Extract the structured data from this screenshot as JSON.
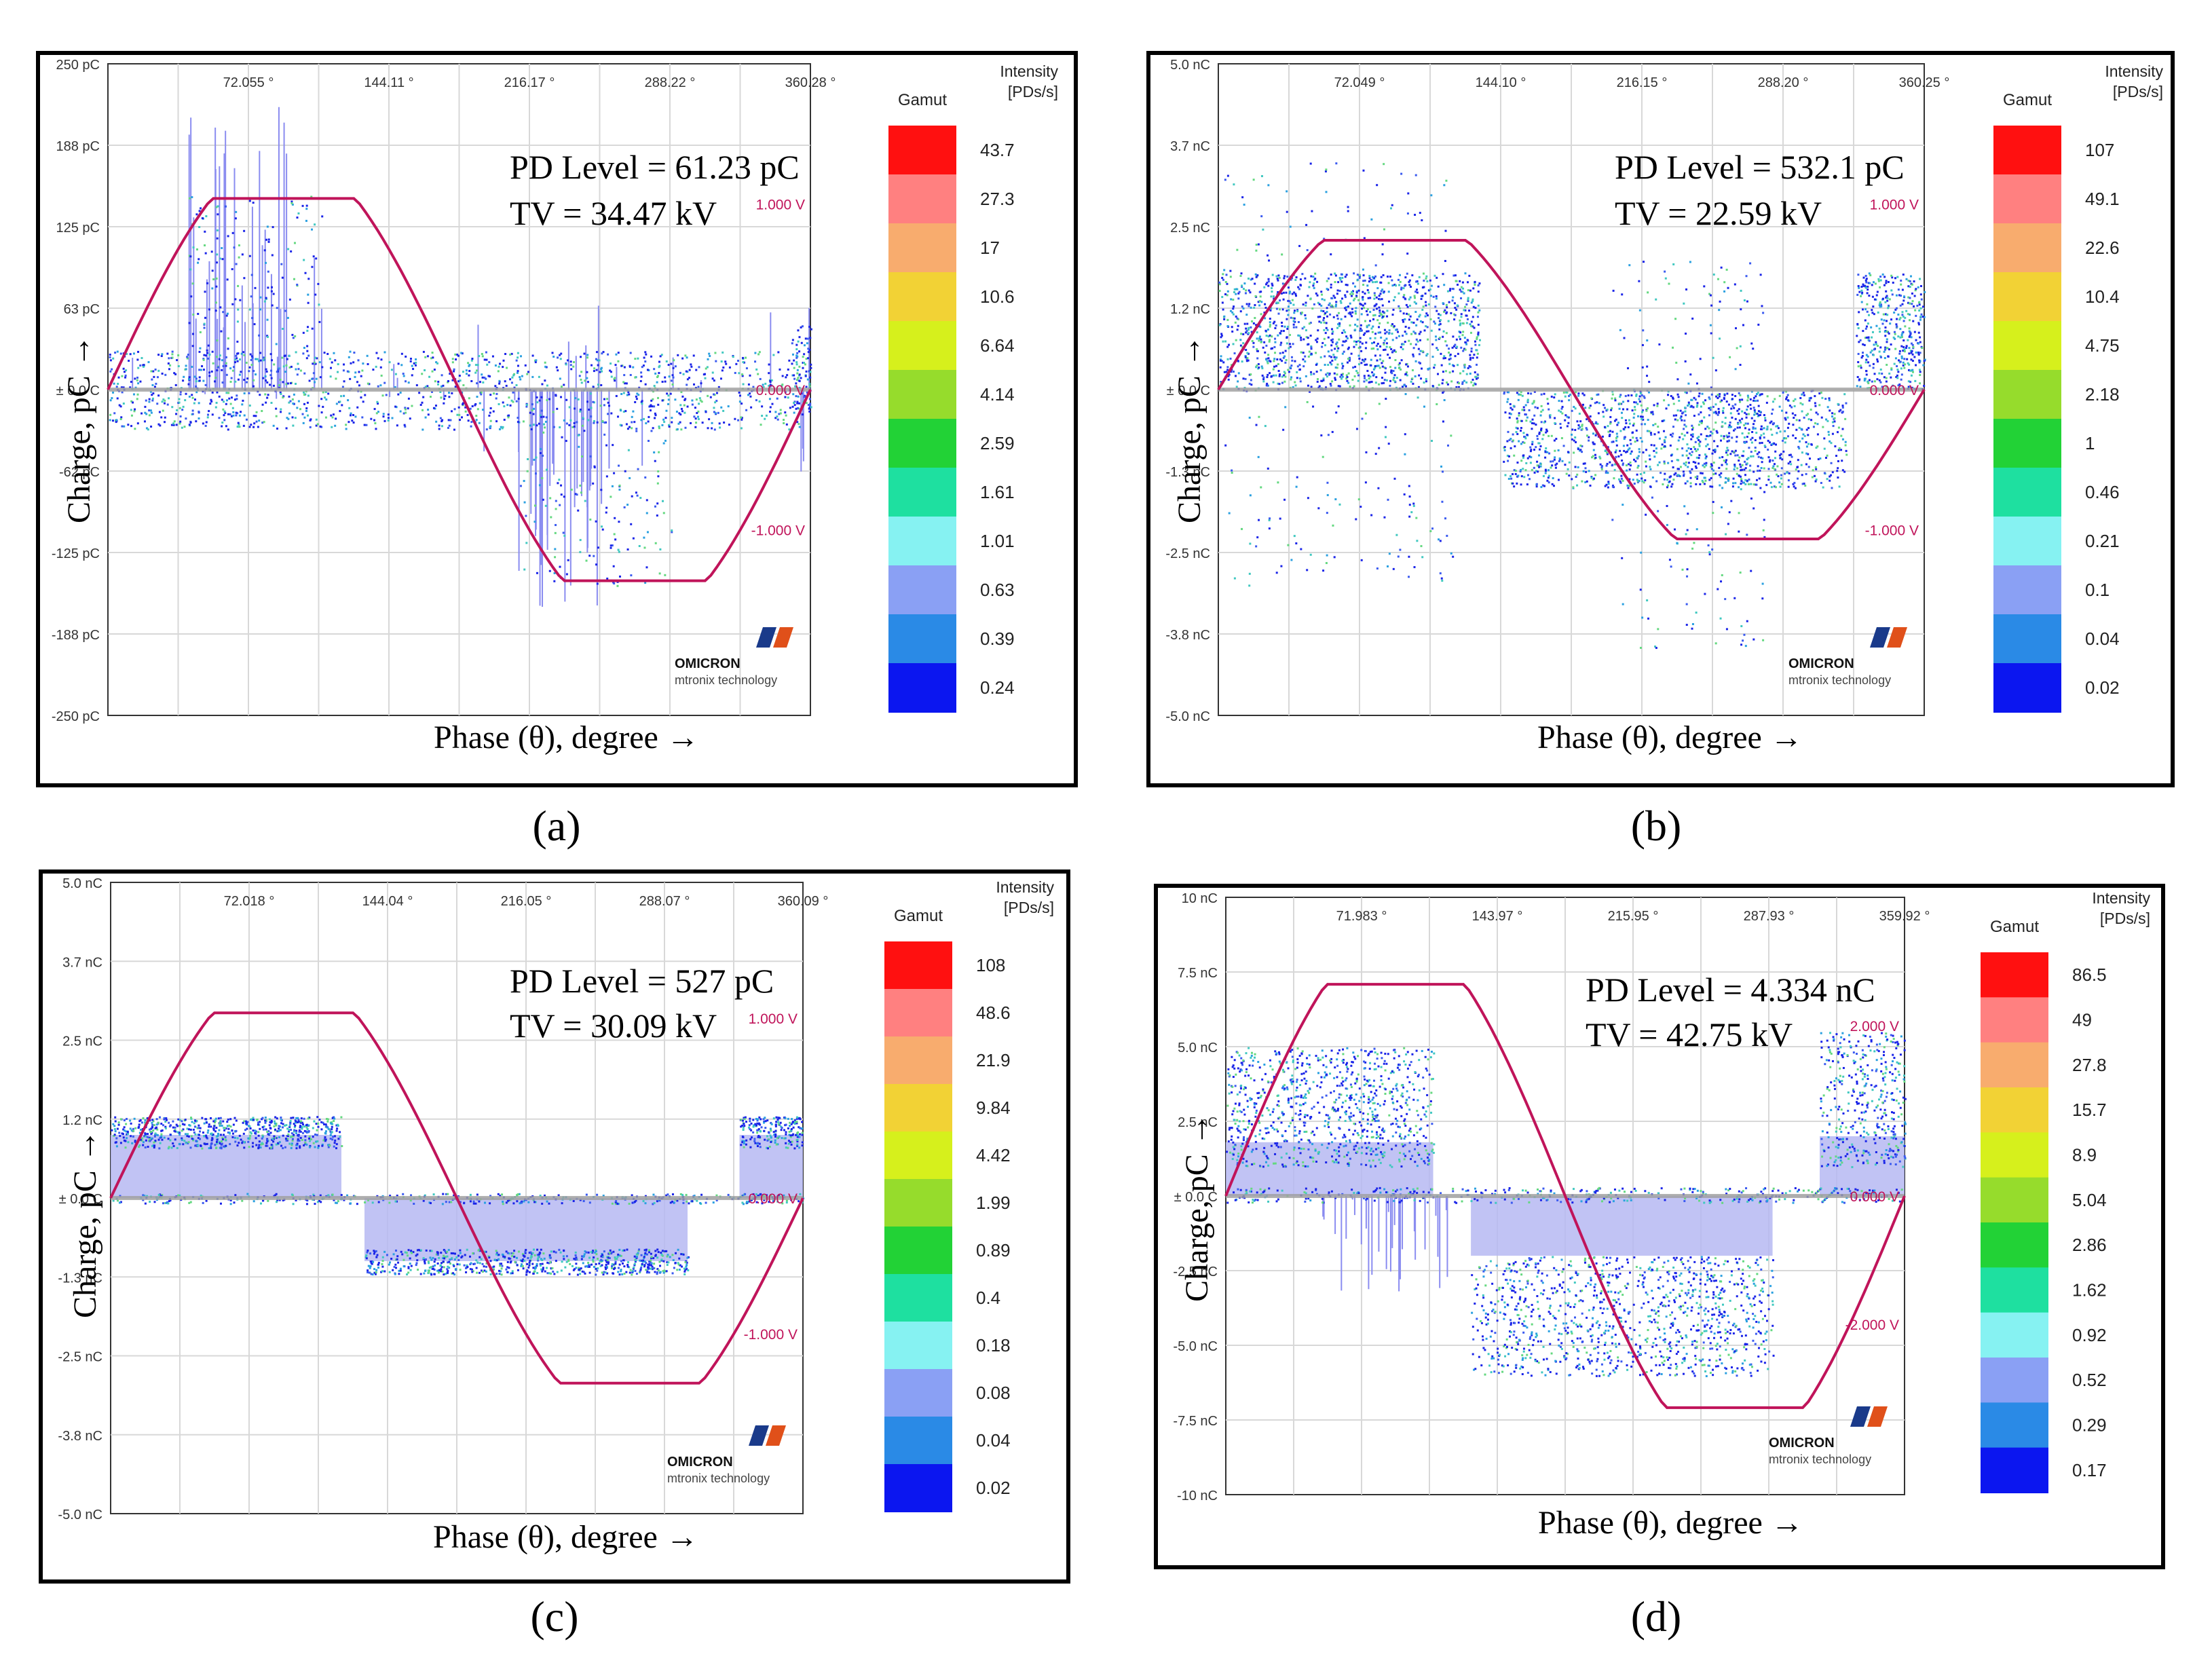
{
  "panels": [
    {
      "label": "(a)",
      "y_axis_title": "Charge, pC →",
      "x_axis_title": "Phase (θ), degree →",
      "pd_level": "PD Level = 61.23 pC",
      "tv": "TV = 34.47 kV",
      "logo": {
        "brand": "OMICRON",
        "sub": "mtronix technology"
      },
      "gamut_title": "Gamut",
      "intensity_title": [
        "Intensity",
        "[PDs/s]"
      ]
    },
    {
      "label": "(b)",
      "y_axis_title": "Charge, pC →",
      "x_axis_title": "Phase (θ), degree →",
      "pd_level": "PD Level = 532.1 pC",
      "tv": "TV = 22.59 kV",
      "logo": {
        "brand": "OMICRON",
        "sub": "mtronix technology"
      },
      "gamut_title": "Gamut",
      "intensity_title": [
        "Intensity",
        "[PDs/s]"
      ]
    },
    {
      "label": "(c)",
      "y_axis_title": "Charge, pC →",
      "x_axis_title": "Phase (θ), degree →",
      "pd_level": "PD Level = 527 pC",
      "tv": "TV = 30.09 kV",
      "logo": {
        "brand": "OMICRON",
        "sub": "mtronix technology"
      },
      "gamut_title": "Gamut",
      "intensity_title": [
        "Intensity",
        "[PDs/s]"
      ]
    },
    {
      "label": "(d)",
      "y_axis_title": "Charge, pC →",
      "x_axis_title": "Phase (θ), degree →",
      "pd_level": "PD Level = 4.334 nC",
      "tv": "TV = 42.75 kV",
      "logo": {
        "brand": "OMICRON",
        "sub": "mtronix technology"
      },
      "gamut_title": "Gamut",
      "intensity_title": [
        "Intensity",
        "[PDs/s]"
      ]
    }
  ],
  "chart_data": [
    {
      "type": "scatter",
      "title": "",
      "xlabel": "Phase (θ), degree →",
      "ylabel": "Charge, pC →",
      "x_ticks": [
        "72.055 °",
        "144.11 °",
        "216.17 °",
        "288.22 °",
        "360.28 °"
      ],
      "y_ticks": [
        "250 pC",
        "188 pC",
        "125 pC",
        "63 pC",
        "± 0.0 C",
        "-62 pC",
        "-125 pC",
        "-188 pC",
        "-250 pC"
      ],
      "y_range": [
        -250,
        250
      ],
      "voltage_ticks": [
        "1.000 V",
        "0.000 V",
        "-1.000 V"
      ],
      "voltage_amplitude": 1.6,
      "pd_level": "PD Level = 61.23 pC",
      "test_voltage": "TV = 34.47 kV",
      "gamut": [
        "43.7",
        "27.3",
        "17",
        "10.6",
        "6.64",
        "4.14",
        "2.59",
        "1.61",
        "1.01",
        "0.63",
        "0.39",
        "0.24"
      ],
      "clusters": [
        {
          "x": [
            0,
            360
          ],
          "y": [
            -30,
            30
          ],
          "n": 1400,
          "note": "baseline band"
        },
        {
          "x": [
            40,
            110
          ],
          "y": [
            20,
            150
          ],
          "n": 180
        },
        {
          "x": [
            210,
            290
          ],
          "y": [
            -150,
            -20
          ],
          "n": 160
        },
        {
          "x": [
            350,
            360
          ],
          "y": [
            -20,
            50
          ],
          "n": 60
        }
      ],
      "spikes": [
        {
          "x": [
            40,
            110
          ],
          "y": [
            40,
            220
          ],
          "n": 28
        },
        {
          "x": [
            210,
            260
          ],
          "y": [
            -180,
            -60
          ],
          "n": 26
        },
        {
          "x": [
            0,
            360
          ],
          "y": [
            -70,
            70
          ],
          "n": 30
        }
      ]
    },
    {
      "type": "scatter",
      "title": "",
      "xlabel": "Phase (θ), degree →",
      "ylabel": "Charge, pC →",
      "x_ticks": [
        "72.049 °",
        "144.10 °",
        "216.15 °",
        "288.20 °",
        "360.25 °"
      ],
      "y_ticks": [
        "5.0 nC",
        "3.7 nC",
        "2.5 nC",
        "1.2 nC",
        "± 0.0 C",
        "-1.3 nC",
        "-2.5 nC",
        "-3.8 nC",
        "-5.0 nC"
      ],
      "y_range": [
        -5.0,
        5.0
      ],
      "voltage_ticks": [
        "1.000 V",
        "0.000 V",
        "-1.000 V"
      ],
      "voltage_amplitude": 1.25,
      "pd_level": "PD Level = 532.1 pC",
      "test_voltage": "TV = 22.59 kV",
      "gamut": [
        "107",
        "49.1",
        "22.6",
        "10.4",
        "4.75",
        "2.18",
        "1",
        "0.46",
        "0.21",
        "0.1",
        "0.04",
        "0.02"
      ],
      "clusters": [
        {
          "x": [
            0,
            133
          ],
          "y": [
            0,
            1.8
          ],
          "n": 1300,
          "note": "positive band"
        },
        {
          "x": [
            145,
            320
          ],
          "y": [
            -1.5,
            0
          ],
          "n": 1300,
          "note": "negative band"
        },
        {
          "x": [
            325,
            360
          ],
          "y": [
            0,
            1.8
          ],
          "n": 400
        },
        {
          "x": [
            0,
            120
          ],
          "y": [
            -3.0,
            3.5
          ],
          "n": 260,
          "note": "sparse"
        },
        {
          "x": [
            200,
            280
          ],
          "y": [
            -4.0,
            2.0
          ],
          "n": 220,
          "note": "sparse"
        }
      ],
      "spikes": []
    },
    {
      "type": "scatter",
      "title": "",
      "xlabel": "Phase (θ), degree →",
      "ylabel": "Charge, pC →",
      "x_ticks": [
        "72.018 °",
        "144.04 °",
        "216.05 °",
        "288.07 °",
        "360.09 °"
      ],
      "y_ticks": [
        "5.0 nC",
        "3.7 nC",
        "2.5 nC",
        "1.2 nC",
        "± 0.0 C",
        "-1.3 nC",
        "-2.5 nC",
        "-3.8 nC",
        "-5.0 nC"
      ],
      "y_range": [
        -5.0,
        5.0
      ],
      "voltage_ticks": [
        "1.000 V",
        "0.000 V",
        "-1.000 V"
      ],
      "voltage_amplitude": 1.6,
      "pd_level": "PD Level = 527 pC",
      "test_voltage": "TV = 30.09 kV",
      "gamut": [
        "108",
        "48.6",
        "21.9",
        "9.84",
        "4.42",
        "1.99",
        "0.89",
        "0.4",
        "0.18",
        "0.08",
        "0.04",
        "0.02"
      ],
      "clusters": [
        {
          "x": [
            0,
            120
          ],
          "y": [
            0.8,
            1.3
          ],
          "n": 700,
          "note": "positive band"
        },
        {
          "x": [
            132,
            300
          ],
          "y": [
            -1.2,
            -0.8
          ],
          "n": 700,
          "note": "negative band"
        },
        {
          "x": [
            327,
            360
          ],
          "y": [
            0.8,
            1.3
          ],
          "n": 200
        },
        {
          "x": [
            0,
            360
          ],
          "y": [
            -0.08,
            0.08
          ],
          "n": 400,
          "note": "baseline"
        }
      ],
      "fills": [
        {
          "x": [
            0,
            120
          ],
          "y": [
            0,
            1.0
          ]
        },
        {
          "x": [
            132,
            300
          ],
          "y": [
            -1.0,
            0
          ]
        },
        {
          "x": [
            327,
            360
          ],
          "y": [
            0,
            1.0
          ]
        }
      ],
      "spikes": []
    },
    {
      "type": "scatter",
      "title": "",
      "xlabel": "Phase (θ), degree →",
      "ylabel": "Charge, pC →",
      "x_ticks": [
        "71.983 °",
        "143.97 °",
        "215.95 °",
        "287.93 °",
        "359.92 °"
      ],
      "y_ticks": [
        "10 nC",
        "7.5 nC",
        "5.0 nC",
        "2.5 nC",
        "± 0.0 C",
        "-2.5 nC",
        "-5.0 nC",
        "-7.5 nC",
        "-10 nC"
      ],
      "y_range": [
        -10,
        10
      ],
      "voltage_ticks": [
        "2.000 V",
        "0.000 V",
        "-2.000 V"
      ],
      "voltage_amplitude": 2.9,
      "pd_level": "PD Level = 4.334 nC",
      "test_voltage": "TV = 42.75 kV",
      "gamut": [
        "86.5",
        "49",
        "27.8",
        "15.7",
        "8.9",
        "5.04",
        "2.86",
        "1.62",
        "0.92",
        "0.52",
        "0.29",
        "0.17"
      ],
      "clusters": [
        {
          "x": [
            0,
            110
          ],
          "y": [
            1.0,
            5.0
          ],
          "n": 900,
          "note": "positive band"
        },
        {
          "x": [
            130,
            290
          ],
          "y": [
            -6.0,
            -2.0
          ],
          "n": 1100,
          "note": "negative band"
        },
        {
          "x": [
            315,
            360
          ],
          "y": [
            1.0,
            5.5
          ],
          "n": 400
        },
        {
          "x": [
            0,
            360
          ],
          "y": [
            -0.2,
            0.3
          ],
          "n": 400,
          "note": "baseline"
        }
      ],
      "fills": [
        {
          "x": [
            0,
            110
          ],
          "y": [
            0,
            1.8
          ]
        },
        {
          "x": [
            130,
            290
          ],
          "y": [
            -2.0,
            0
          ]
        },
        {
          "x": [
            315,
            360
          ],
          "y": [
            0,
            2.0
          ]
        }
      ],
      "spikes": [
        {
          "x": [
            50,
            120
          ],
          "y": [
            -4.0,
            0
          ],
          "n": 30
        }
      ]
    }
  ]
}
